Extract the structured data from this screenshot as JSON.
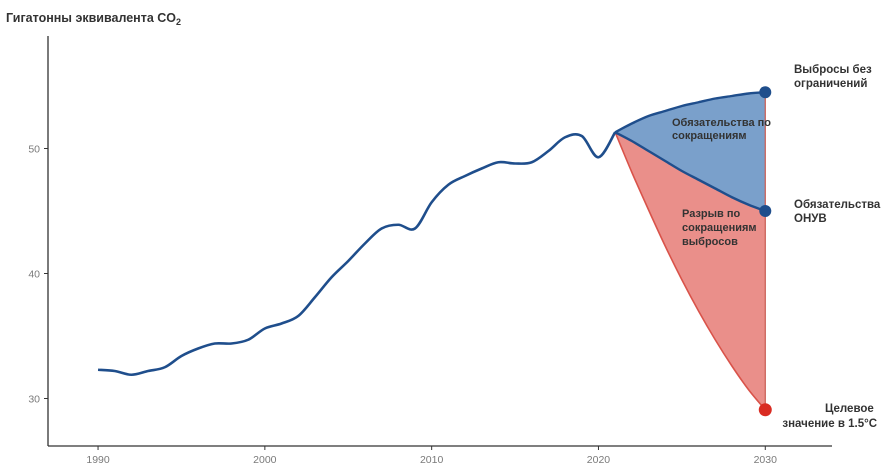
{
  "chart_data": {
    "type": "line",
    "ylabel_main": "Гигатонны эквивалента CO",
    "ylabel_sub": "2",
    "xlabel": "",
    "x_ticks": [
      1990,
      2000,
      2010,
      2020,
      2030
    ],
    "y_ticks": [
      30,
      40,
      50
    ],
    "xlim": [
      1987,
      2034
    ],
    "ylim": [
      26.2,
      59
    ],
    "grid": false,
    "colors": {
      "history_line": "#1f4e8c",
      "commitments_fill": "#7aa0cb",
      "gap_fill": "#ea8f8a",
      "gap_edge": "#d9534a",
      "unconditional_marker": "#1f4e8c",
      "target_marker": "#d92b22"
    },
    "series": [
      {
        "x": [
          1990,
          1991,
          1992,
          1993,
          1994,
          1995,
          1996,
          1997,
          1998,
          1999,
          2000,
          2001,
          2002,
          2003,
          2004,
          2005,
          2006,
          2007,
          2008,
          2009,
          2010,
          2011,
          2012,
          2013,
          2014,
          2015,
          2016,
          2017,
          2018,
          2019,
          2020,
          2021
        ],
        "y": [
          32.3,
          32.2,
          31.9,
          32.2,
          32.5,
          33.4,
          34.0,
          34.4,
          34.4,
          34.7,
          35.6,
          36.0,
          36.6,
          38.1,
          39.7,
          41.0,
          42.4,
          43.6,
          43.9,
          43.6,
          45.7,
          47.1,
          47.8,
          48.4,
          48.9,
          48.8,
          48.9,
          49.8,
          50.9,
          51.0,
          49.3,
          51.3
        ]
      }
    ],
    "projections": {
      "x": [
        2021,
        2022,
        2023,
        2024,
        2025,
        2026,
        2027,
        2028,
        2029,
        2030
      ],
      "unconstrained": [
        51.3,
        52.0,
        52.6,
        53.0,
        53.4,
        53.7,
        54.0,
        54.2,
        54.4,
        54.5
      ],
      "commitments": [
        51.3,
        50.6,
        49.8,
        49.0,
        48.2,
        47.5,
        46.8,
        46.1,
        45.5,
        45.0
      ],
      "target_1_5": [
        51.3,
        48.1,
        45.1,
        42.2,
        39.5,
        37.0,
        34.7,
        32.6,
        30.7,
        29.1
      ]
    },
    "annotations": {
      "unconstrained": [
        "Выбросы без",
        "ограничений"
      ],
      "commitments_area": [
        "Обязательства по",
        "сокращениям"
      ],
      "unconditional": [
        "Обязательства",
        "ОНУВ"
      ],
      "gap": [
        "Разрыв по",
        "сокращениям",
        "выбросов"
      ],
      "target": [
        "Целевое",
        "значение в 1.5°C"
      ]
    }
  }
}
